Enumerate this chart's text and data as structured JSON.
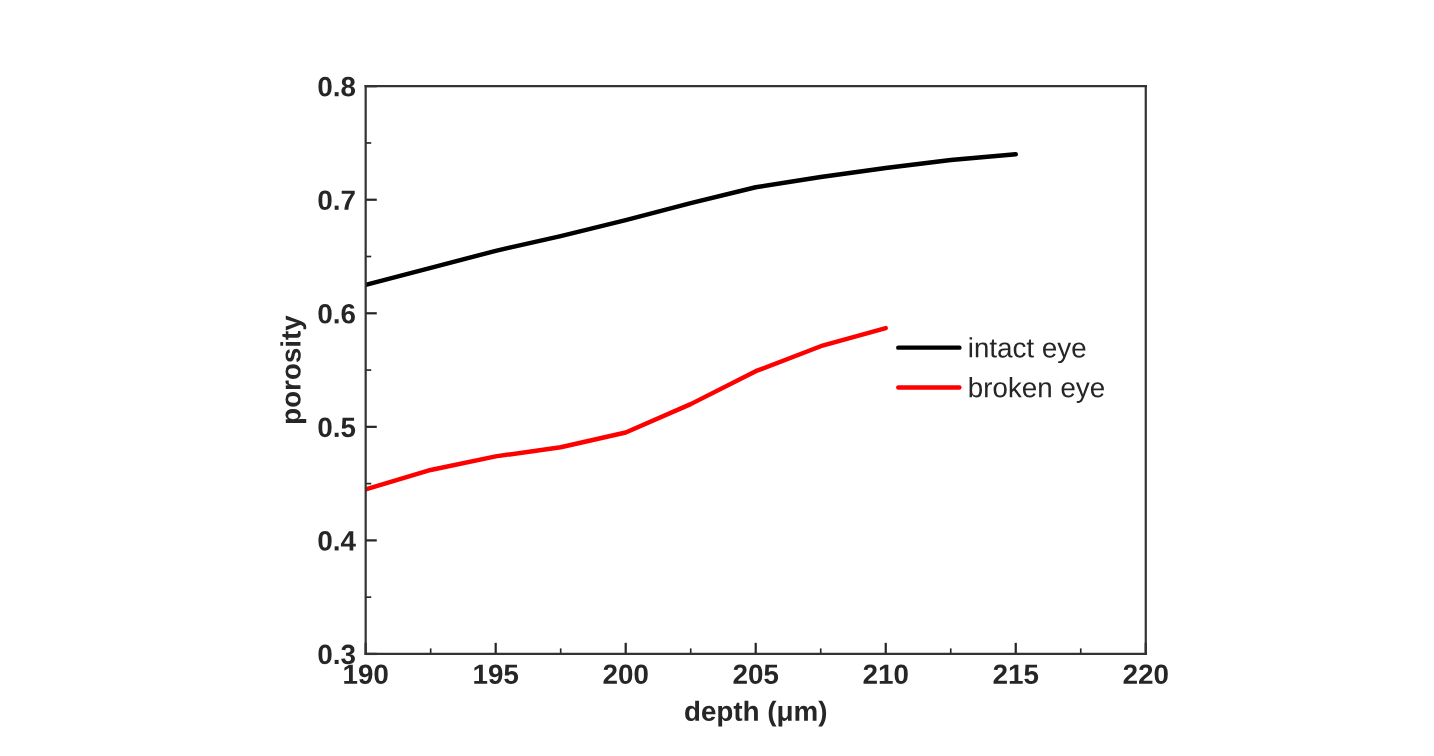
{
  "chart_data": {
    "type": "line",
    "xlabel": "depth (μm)",
    "ylabel": "porosity",
    "x": [
      190,
      192.5,
      195,
      197.5,
      200,
      202.5,
      205,
      207.5,
      210,
      212.5,
      215
    ],
    "series": [
      {
        "name": "intact eye",
        "color": "#000000",
        "values": [
          0.625,
          0.64,
          0.655,
          0.668,
          0.682,
          0.697,
          0.711,
          0.72,
          0.728,
          0.735,
          0.74
        ]
      },
      {
        "name": "broken eye",
        "color": "#ff0000",
        "values": [
          0.445,
          0.462,
          0.474,
          0.482,
          0.495,
          0.52,
          0.549,
          0.571,
          0.587,
          null,
          null
        ]
      }
    ],
    "xlim": [
      190,
      220
    ],
    "xticks": [
      190,
      195,
      200,
      205,
      210,
      215,
      220
    ],
    "ylim": [
      0.3,
      0.8
    ],
    "yticks": [
      0.3,
      0.4,
      0.5,
      0.6,
      0.7,
      0.8
    ],
    "grid": false,
    "legend": "right",
    "marker": "none",
    "line_style": "solid"
  }
}
